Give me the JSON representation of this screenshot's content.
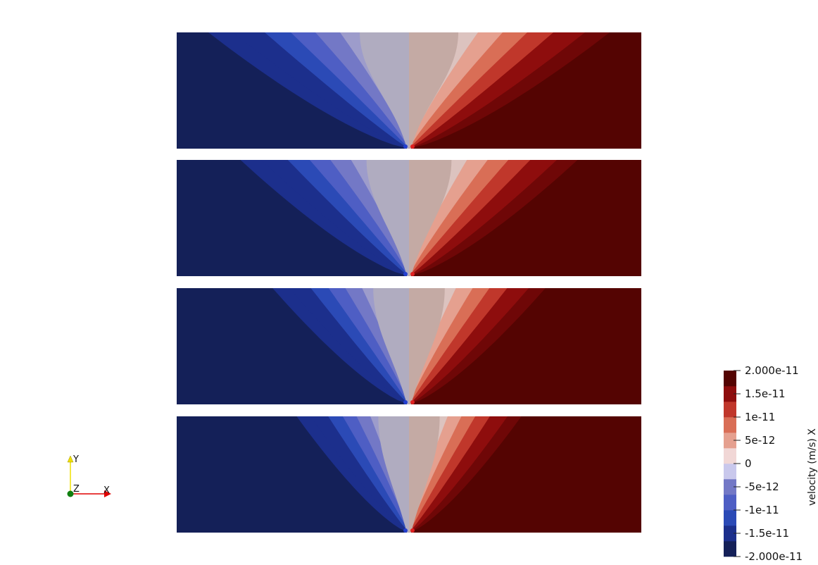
{
  "legend": {
    "title": "velocity (m/s) X",
    "ticks": [
      "2.000e-11",
      "1.5e-11",
      "1e-11",
      "5e-12",
      "0",
      "-5e-12",
      "-1e-11",
      "-1.5e-11",
      "-2.000e-11"
    ],
    "range": [
      -2e-11,
      2e-11
    ],
    "bands": 12,
    "colors": {
      "max": "#540402",
      "min": "#142058",
      "zero": "#dddddd"
    }
  },
  "panels": [
    {
      "name": "velocity-panel-1",
      "spread": 1.0
    },
    {
      "name": "velocity-panel-2",
      "spread": 0.84
    },
    {
      "name": "velocity-panel-3",
      "spread": 0.68
    },
    {
      "name": "velocity-panel-4",
      "spread": 0.56
    }
  ],
  "axes_triad": {
    "x_label": "X",
    "y_label": "Y",
    "z_label": "Z",
    "x_color": "#e00000",
    "y_color": "#f0e000",
    "z_color": "#108010"
  }
}
